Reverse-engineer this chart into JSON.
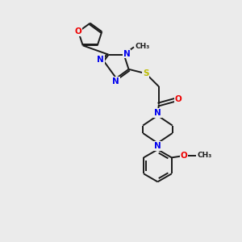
{
  "background_color": "#ebebeb",
  "bond_color": "#1a1a1a",
  "atom_colors": {
    "N": "#0000ee",
    "O": "#ee0000",
    "S": "#bbbb00",
    "C": "#1a1a1a"
  },
  "figsize": [
    3.0,
    3.0
  ],
  "dpi": 100
}
